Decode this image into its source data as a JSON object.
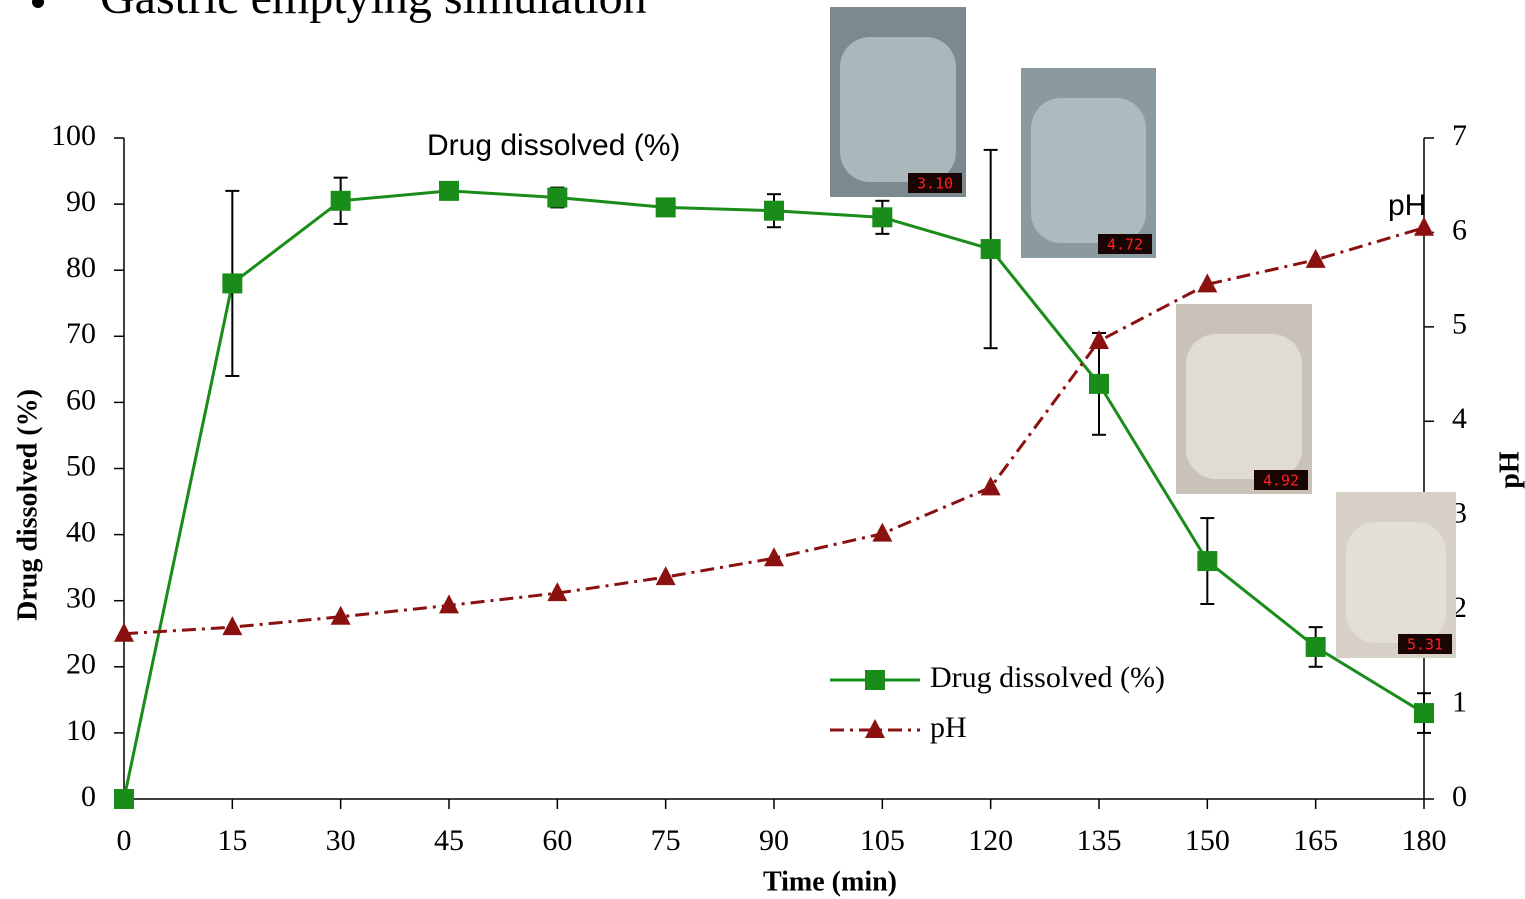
{
  "chart_data": {
    "type": "line",
    "title": "Gastric emptying simulation",
    "x_label": "Time (min)",
    "y_label": "Drug dissolved (%)",
    "y2_label": "pH",
    "x": [
      0,
      15,
      30,
      45,
      60,
      75,
      90,
      105,
      120,
      135,
      150,
      165,
      180
    ],
    "xlim": [
      0,
      180
    ],
    "xticks": [
      0,
      15,
      30,
      45,
      60,
      75,
      90,
      105,
      120,
      135,
      150,
      165,
      180
    ],
    "ylim": [
      0,
      100
    ],
    "yticks": [
      0,
      10,
      20,
      30,
      40,
      50,
      60,
      70,
      80,
      90,
      100
    ],
    "y2lim": [
      0,
      7
    ],
    "y2ticks": [
      0,
      1,
      2,
      3,
      4,
      5,
      6,
      7
    ],
    "series": [
      {
        "name": "Drug dissolved (%)",
        "color": "#1a8c1a",
        "marker": "square",
        "values": [
          0,
          78,
          90.5,
          92,
          91,
          89.5,
          89,
          88,
          83.2,
          62.8,
          36,
          23,
          13
        ],
        "errors": [
          0,
          14,
          3.5,
          1,
          1.5,
          1,
          2.5,
          2.5,
          15,
          7.7,
          6.5,
          3,
          3
        ]
      },
      {
        "name": "pH",
        "color": "#8b1010",
        "marker": "triangle",
        "axis": "y2",
        "values": [
          1.75,
          1.82,
          1.93,
          2.05,
          2.18,
          2.35,
          2.55,
          2.81,
          3.3,
          4.85,
          5.45,
          5.71,
          6.05
        ]
      }
    ],
    "annotations": [
      "Drug dissolved (%)",
      "pH"
    ],
    "photo_readings": [
      "3.10",
      "4.72",
      "4.92",
      "5.31"
    ]
  }
}
